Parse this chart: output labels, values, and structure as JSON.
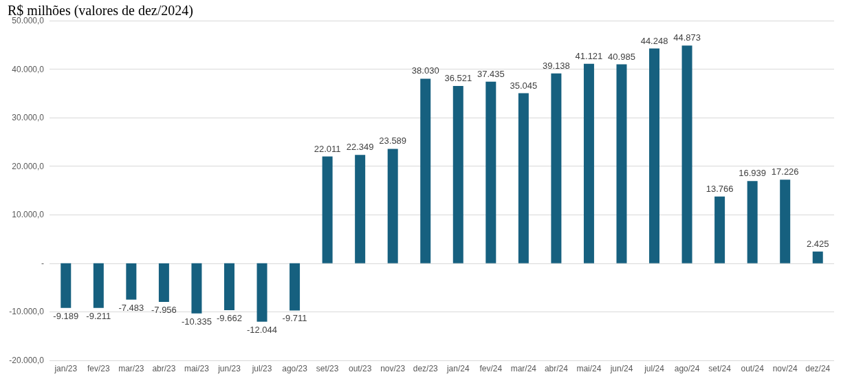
{
  "chart_data": {
    "type": "bar",
    "title": "R$ milhões (valores de dez/2024)",
    "categories": [
      "jan/23",
      "fev/23",
      "mar/23",
      "abr/23",
      "mai/23",
      "jun/23",
      "jul/23",
      "ago/23",
      "set/23",
      "out/23",
      "nov/23",
      "dez/23",
      "jan/24",
      "fev/24",
      "mar/24",
      "abr/24",
      "mai/24",
      "jun/24",
      "jul/24",
      "ago/24",
      "set/24",
      "out/24",
      "nov/24",
      "dez/24"
    ],
    "values": [
      -9189,
      -9211,
      -7483,
      -7956,
      -10335,
      -9662,
      -12044,
      -9711,
      22011,
      22349,
      23589,
      38030,
      36521,
      37435,
      35045,
      39138,
      41121,
      40985,
      44248,
      44873,
      13766,
      16939,
      17226,
      2425
    ],
    "value_labels": [
      "-9.189",
      "-9.211",
      "-7.483",
      "-7.956",
      "-10.335",
      "-9.662",
      "-12.044",
      "-9.711",
      "22.011",
      "22.349",
      "23.589",
      "38.030",
      "36.521",
      "37.435",
      "35.045",
      "39.138",
      "41.121",
      "40.985",
      "44.248",
      "44.873",
      "13.766",
      "16.939",
      "17.226",
      "2.425"
    ],
    "color": "#16607f",
    "ylim": [
      -20000,
      50000
    ],
    "yticks": [
      {
        "value": -20000,
        "label": "-20.000,0"
      },
      {
        "value": -10000,
        "label": "-10.000,0"
      },
      {
        "value": 0,
        "label": "-"
      },
      {
        "value": 10000,
        "label": "10.000,0"
      },
      {
        "value": 20000,
        "label": "20.000,0"
      },
      {
        "value": 30000,
        "label": "30.000,0"
      },
      {
        "value": 40000,
        "label": "40.000,0"
      },
      {
        "value": 50000,
        "label": "50.000,0"
      }
    ],
    "grid": "y"
  }
}
